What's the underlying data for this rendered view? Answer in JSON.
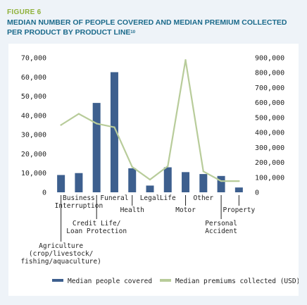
{
  "figure": {
    "label": "FIGURE 6",
    "title": "MEDIAN NUMBER OF PEOPLE COVERED AND MEDIAN PREMIUM COLLECTED PER PRODUCT BY PRODUCT LINE",
    "footnote": "10"
  },
  "chart_data": {
    "type": "bar",
    "categories": [
      "Agriculture (crop/livestock/ fishing/aquaculture)",
      "Business Interruption",
      "Credit Life/ Loan Protection",
      "Funeral",
      "Health",
      "Legal",
      "Life",
      "Motor",
      "Other",
      "Personal Accident",
      "Property"
    ],
    "category_lines": [
      [
        "Agriculture",
        "(crop/livestock/",
        "fishing/aquaculture)"
      ],
      [
        "Business",
        "Interruption"
      ],
      [
        "Credit Life/",
        "Loan Protection"
      ],
      [
        "Funeral"
      ],
      [
        "Health"
      ],
      [
        "Legal"
      ],
      [
        "Life"
      ],
      [
        "Motor"
      ],
      [
        "Other"
      ],
      [
        "Personal",
        "Accident"
      ],
      [
        "Property"
      ]
    ],
    "series": [
      {
        "name": "Median people covered",
        "type": "bar",
        "axis": "left",
        "color": "#3d5f8e",
        "values": [
          9000,
          10000,
          46500,
          62500,
          12500,
          3500,
          13000,
          10500,
          9500,
          8500,
          2500
        ]
      },
      {
        "name": "Median premiums collected (USD)",
        "type": "line",
        "axis": "right",
        "color": "#b8cc9a",
        "values": [
          450000,
          525000,
          460000,
          435000,
          170000,
          85000,
          175000,
          885000,
          140000,
          75000,
          75000
        ]
      }
    ],
    "y_left": {
      "ticks": [
        0,
        10000,
        20000,
        30000,
        40000,
        50000,
        60000,
        70000
      ],
      "tick_labels": [
        "0",
        "10,000",
        "20,000",
        "30,000",
        "40,000",
        "50,000",
        "60,000",
        "70,000"
      ],
      "lim": [
        0,
        70000
      ]
    },
    "y_right": {
      "ticks": [
        0,
        100000,
        200000,
        300000,
        400000,
        500000,
        600000,
        700000,
        800000,
        900000
      ],
      "tick_labels": [
        "0",
        "100,000",
        "200,000",
        "300,000",
        "400,000",
        "500,000",
        "600,000",
        "700,000",
        "800,000",
        "900,000"
      ],
      "lim": [
        0,
        900000
      ]
    },
    "grid": false,
    "legend": "bottom"
  }
}
